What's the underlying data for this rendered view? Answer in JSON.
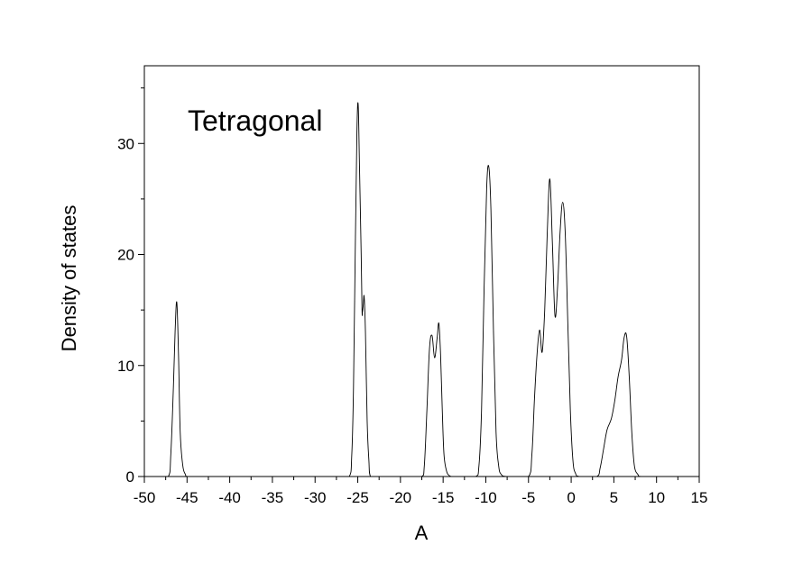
{
  "chart_data": {
    "type": "line",
    "title": "",
    "annotation": "Tetragonal",
    "xlabel": "A",
    "ylabel": "Density of states",
    "xlim": [
      -50,
      15
    ],
    "ylim": [
      0,
      37
    ],
    "xticks": [
      -50,
      -45,
      -40,
      -35,
      -30,
      -25,
      -20,
      -15,
      -10,
      -5,
      0,
      5,
      10,
      15
    ],
    "yticks": [
      0,
      10,
      20,
      30
    ],
    "grid": false,
    "legend": "none",
    "line_color": "#000000",
    "series": [
      {
        "x": [
          -50,
          -47.2,
          -46.9,
          -46.6,
          -46.4,
          -46.2,
          -46.0,
          -45.8,
          -45.5,
          -45.2,
          -45.0,
          -26.0,
          -25.7,
          -25.5,
          -25.3,
          -25.1,
          -24.95,
          -24.8,
          -24.6,
          -24.5,
          -24.45,
          -24.35,
          -24.25,
          -24.1,
          -23.9,
          -23.7,
          -23.5,
          -17.5,
          -17.2,
          -16.9,
          -16.6,
          -16.3,
          -16.0,
          -15.7,
          -15.5,
          -15.3,
          -15.1,
          -14.9,
          -14.6,
          -14.3,
          -14.0,
          -13.5,
          -11.2,
          -10.8,
          -10.5,
          -10.2,
          -9.9,
          -9.65,
          -9.4,
          -9.1,
          -8.8,
          -8.5,
          -8.2,
          -7.5,
          -5.0,
          -4.6,
          -4.3,
          -4.0,
          -3.7,
          -3.4,
          -3.1,
          -2.8,
          -2.5,
          -2.2,
          -1.9,
          -1.6,
          -1.3,
          -1.0,
          -0.7,
          -0.4,
          -0.1,
          0.2,
          0.5,
          1.0,
          3.0,
          3.4,
          3.8,
          4.2,
          4.7,
          5.1,
          5.5,
          5.9,
          6.2,
          6.5,
          6.8,
          7.1,
          7.4,
          7.8,
          8.2,
          15
        ],
        "y": [
          0,
          0,
          2,
          8,
          13,
          15.7,
          11,
          4,
          1,
          0.2,
          0,
          0,
          2,
          8,
          20,
          31,
          33.5,
          28,
          20,
          15,
          14.8,
          15.5,
          16.2,
          13,
          5,
          1.5,
          0,
          0,
          1,
          6,
          11.5,
          12.7,
          10.7,
          12.5,
          13.8,
          11,
          6,
          2,
          0.5,
          0.1,
          0,
          0,
          0,
          1,
          6,
          17,
          26,
          27.9,
          24,
          13,
          4,
          1,
          0.2,
          0,
          0,
          2,
          7,
          11,
          13.2,
          11.2,
          15,
          22,
          26.8,
          21,
          14.5,
          17,
          22,
          24.7,
          22,
          14,
          6,
          1.5,
          0.3,
          0,
          0,
          0.8,
          2.5,
          4.2,
          5.2,
          6.8,
          9,
          10.5,
          12.5,
          12.6,
          9,
          4,
          1,
          0.2,
          0,
          0
        ]
      }
    ]
  }
}
